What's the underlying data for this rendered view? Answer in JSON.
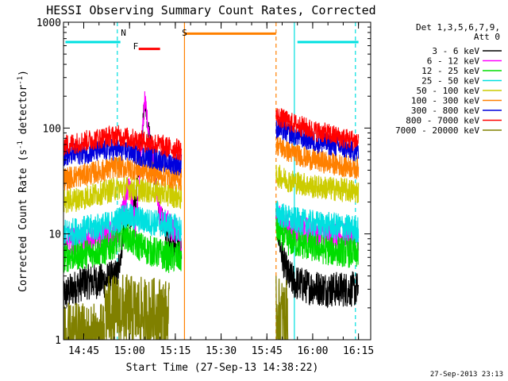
{
  "chart_data": {
    "type": "line",
    "title": "HESSI Observing Summary Count Rates, Corrected",
    "xlabel": "Start Time (27-Sep-13 14:38:22)",
    "ylabel": "Corrected Count Rate (s-1 detector-1)",
    "ylabel_main": "Corrected Count Rate (s",
    "ylabel_sup1": "-1",
    "ylabel_mid": " detector",
    "ylabel_sup2": "-1",
    "ylabel_end": ")",
    "footer": "27-Sep-2013 23:13",
    "yscale": "log",
    "ylim": [
      1,
      1000
    ],
    "xlim": [
      "14:38:22",
      "16:19:00"
    ],
    "x_ticks": [
      "14:45",
      "15:00",
      "15:15",
      "15:30",
      "15:45",
      "16:00",
      "16:15"
    ],
    "y_ticks": [
      "1",
      "10",
      "100",
      "1000"
    ],
    "legend_header": [
      "Det 1,3,5,6,7,9,",
      "Att 0"
    ],
    "legend_position": "right",
    "flag_labels": [
      {
        "text": "N",
        "time": "14:58",
        "color": "#00e0e0"
      },
      {
        "text": "F",
        "time": "15:02",
        "color": "#ff0000"
      },
      {
        "text": "S",
        "time": "15:18",
        "color": "#ff8000"
      }
    ],
    "flag_bars": [
      {
        "color": "#00e0e0",
        "from": "14:39",
        "to": "14:57",
        "level": 650
      },
      {
        "color": "#ff0000",
        "from": "15:03",
        "to": "15:10",
        "level": 560
      },
      {
        "color": "#ff8000",
        "from": "15:18",
        "to": "15:48",
        "level": 780
      },
      {
        "color": "#00e0e0",
        "from": "15:55",
        "to": "16:15",
        "level": 650
      }
    ],
    "markers": [
      {
        "time": "14:56",
        "color": "#00e0e0",
        "style": "dashed"
      },
      {
        "time": "15:18",
        "color": "#ff8000",
        "style": "solid"
      },
      {
        "time": "15:48",
        "color": "#ff8000",
        "style": "dashed"
      },
      {
        "time": "15:54",
        "color": "#00e0e0",
        "style": "solid"
      },
      {
        "time": "16:14",
        "color": "#00e0e0",
        "style": "dashed"
      }
    ],
    "series": [
      {
        "name": "3 - 6 keV",
        "color": "#000000",
        "segments": [
          {
            "x": [
              "14:38",
              "14:45",
              "14:52",
              "14:56",
              "14:58",
              "15:02",
              "15:05",
              "15:08",
              "15:10",
              "15:13",
              "15:16",
              "15:17"
            ],
            "y": [
              2.6,
              3.5,
              3.6,
              4.0,
              10,
              20,
              180,
              40,
              15,
              9,
              7,
              7
            ]
          },
          {
            "x": [
              "15:48",
              "15:50",
              "15:52",
              "15:54",
              "15:58",
              "16:05",
              "16:10",
              "16:15"
            ],
            "y": [
              14,
              6,
              4,
              3.5,
              3.2,
              3.0,
              3.0,
              3.0
            ]
          }
        ]
      },
      {
        "name": "6 - 12 keV",
        "color": "#ff00ff",
        "segments": [
          {
            "x": [
              "14:38",
              "14:45",
              "14:52",
              "14:56",
              "15:00",
              "15:02",
              "15:05",
              "15:08",
              "15:10",
              "15:13",
              "15:16",
              "15:17"
            ],
            "y": [
              8.5,
              9,
              9.5,
              10,
              30,
              12,
              180,
              40,
              15,
              12,
              10,
              9
            ]
          },
          {
            "x": [
              "15:48",
              "15:52",
              "15:56",
              "16:00",
              "16:05",
              "16:10",
              "16:15"
            ],
            "y": [
              15,
              11.5,
              11,
              10.5,
              10,
              9.5,
              9
            ]
          }
        ]
      },
      {
        "name": "12 - 25 keV",
        "color": "#00dd00",
        "segments": [
          {
            "x": [
              "14:38",
              "14:45",
              "14:52",
              "14:56",
              "14:58",
              "15:02",
              "15:06",
              "15:10",
              "15:13",
              "15:17"
            ],
            "y": [
              6,
              6.5,
              7,
              8.5,
              10,
              8,
              7,
              6.5,
              6,
              6
            ]
          },
          {
            "x": [
              "15:48",
              "15:52",
              "15:56",
              "16:00",
              "16:05",
              "16:10",
              "16:15"
            ],
            "y": [
              11,
              8.5,
              8,
              7.5,
              7,
              6.8,
              6.5
            ]
          }
        ]
      },
      {
        "name": "25 - 50 keV",
        "color": "#00e0e0",
        "segments": [
          {
            "x": [
              "14:38",
              "14:45",
              "14:52",
              "14:56",
              "14:58",
              "15:02",
              "15:06",
              "15:10",
              "15:13",
              "15:17"
            ],
            "y": [
              10,
              11,
              12,
              13,
              15,
              14,
              13,
              12.5,
              12,
              11
            ]
          },
          {
            "x": [
              "15:48",
              "15:52",
              "15:56",
              "16:00",
              "16:05",
              "16:10",
              "16:15"
            ],
            "y": [
              16,
              14,
              13,
              12.5,
              12,
              11.5,
              11
            ]
          }
        ]
      },
      {
        "name": "50 - 100 keV",
        "color": "#cccc00",
        "segments": [
          {
            "x": [
              "14:38",
              "14:45",
              "14:52",
              "14:56",
              "15:00",
              "15:04",
              "15:08",
              "15:12",
              "15:17"
            ],
            "y": [
              20,
              22,
              25,
              27,
              27,
              26,
              25,
              24,
              22
            ]
          },
          {
            "x": [
              "15:48",
              "15:52",
              "15:56",
              "16:00",
              "16:05",
              "16:10",
              "16:15"
            ],
            "y": [
              36,
              32,
              30,
              28,
              27,
              26,
              25
            ]
          }
        ]
      },
      {
        "name": "100 - 300 keV",
        "color": "#ff8000",
        "segments": [
          {
            "x": [
              "14:38",
              "14:45",
              "14:52",
              "14:56",
              "15:00",
              "15:04",
              "15:08",
              "15:12",
              "15:17"
            ],
            "y": [
              33,
              36,
              40,
              43,
              42,
              40,
              38,
              35,
              33
            ]
          },
          {
            "x": [
              "15:48",
              "15:52",
              "15:56",
              "16:00",
              "16:05",
              "16:10",
              "16:15"
            ],
            "y": [
              70,
              60,
              55,
              50,
              47,
              44,
              42
            ]
          }
        ]
      },
      {
        "name": "300 - 800 keV",
        "color": "#0000dd",
        "segments": [
          {
            "x": [
              "14:38",
              "14:45",
              "14:52",
              "14:56",
              "15:00",
              "15:04",
              "15:08",
              "15:12",
              "15:17"
            ],
            "y": [
              55,
              58,
              62,
              63,
              60,
              55,
              52,
              48,
              45
            ]
          },
          {
            "x": [
              "15:48",
              "15:52",
              "15:56",
              "16:00",
              "16:05",
              "16:10",
              "16:15"
            ],
            "y": [
              100,
              90,
              82,
              75,
              70,
              65,
              60
            ]
          }
        ]
      },
      {
        "name": "800 - 7000 keV",
        "color": "#ff0000",
        "segments": [
          {
            "x": [
              "14:38",
              "14:45",
              "14:52",
              "14:56",
              "15:00",
              "15:04",
              "15:08",
              "15:12",
              "15:17"
            ],
            "y": [
              68,
              75,
              82,
              85,
              80,
              75,
              72,
              66,
              62
            ]
          },
          {
            "x": [
              "15:48",
              "15:52",
              "15:56",
              "16:00",
              "16:05",
              "16:10",
              "16:15"
            ],
            "y": [
              130,
              115,
              105,
              95,
              88,
              80,
              75
            ]
          }
        ]
      },
      {
        "name": "7000 - 20000 keV",
        "color": "#808000",
        "segments": [
          {
            "x": [
              "14:38",
              "14:52"
            ],
            "y": [
              1.0,
              1.0
            ]
          },
          {
            "x": [
              "14:52",
              "14:58",
              "15:02",
              "15:06",
              "15:10",
              "15:13"
            ],
            "y": [
              1.8,
              1.9,
              1.8,
              1.7,
              1.8,
              1.6
            ]
          },
          {
            "x": [
              "15:48",
              "15:50",
              "15:52"
            ],
            "y": [
              1.8,
              1.7,
              1.6
            ]
          }
        ]
      }
    ]
  }
}
